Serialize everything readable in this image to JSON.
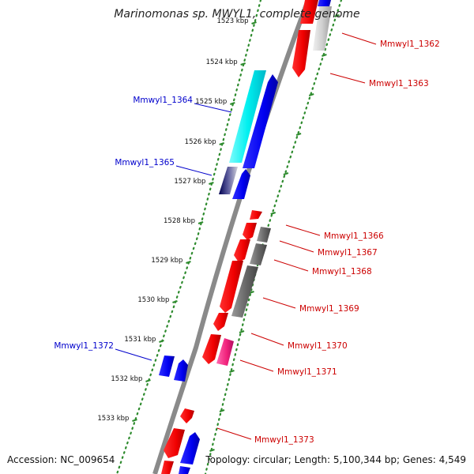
{
  "title": "Marinomonas sp. MWYL1, complete genome",
  "footer": {
    "accession": "Accession: NC_009654",
    "topology": "Topology: circular; Length: 5,100,344 bp; Genes: 4,549"
  },
  "colors": {
    "forward_label": "#0000cc",
    "reverse_label": "#cc0000",
    "backbone": "#8a8a8a",
    "tick": "#2e8b2e",
    "dots": "#2e8b2e"
  },
  "kbp_ticks": [
    {
      "label": "1523 kbp",
      "faded": true
    },
    {
      "label": "1524 kbp"
    },
    {
      "label": "1525 kbp"
    },
    {
      "label": "1526 kbp"
    },
    {
      "label": "1527 kbp"
    },
    {
      "label": "1528 kbp"
    },
    {
      "label": "1529 kbp"
    },
    {
      "label": "1530 kbp"
    },
    {
      "label": "1531 kbp"
    },
    {
      "label": "1532 kbp"
    },
    {
      "label": "1533 kbp"
    }
  ],
  "gene_labels": [
    {
      "text": "Mmwyl1_1362",
      "strand": "reverse"
    },
    {
      "text": "Mmwyl1_1363",
      "strand": "reverse"
    },
    {
      "text": "Mmwyl1_1364",
      "strand": "forward"
    },
    {
      "text": "Mmwyl1_1365",
      "strand": "forward"
    },
    {
      "text": "Mmwyl1_1366",
      "strand": "reverse"
    },
    {
      "text": "Mmwyl1_1367",
      "strand": "reverse"
    },
    {
      "text": "Mmwyl1_1368",
      "strand": "reverse"
    },
    {
      "text": "Mmwyl1_1369",
      "strand": "reverse"
    },
    {
      "text": "Mmwyl1_1370",
      "strand": "reverse"
    },
    {
      "text": "Mmwyl1_1371",
      "strand": "reverse"
    },
    {
      "text": "Mmwyl1_1372",
      "strand": "forward"
    },
    {
      "text": "Mmwyl1_1373",
      "strand": "reverse"
    }
  ]
}
